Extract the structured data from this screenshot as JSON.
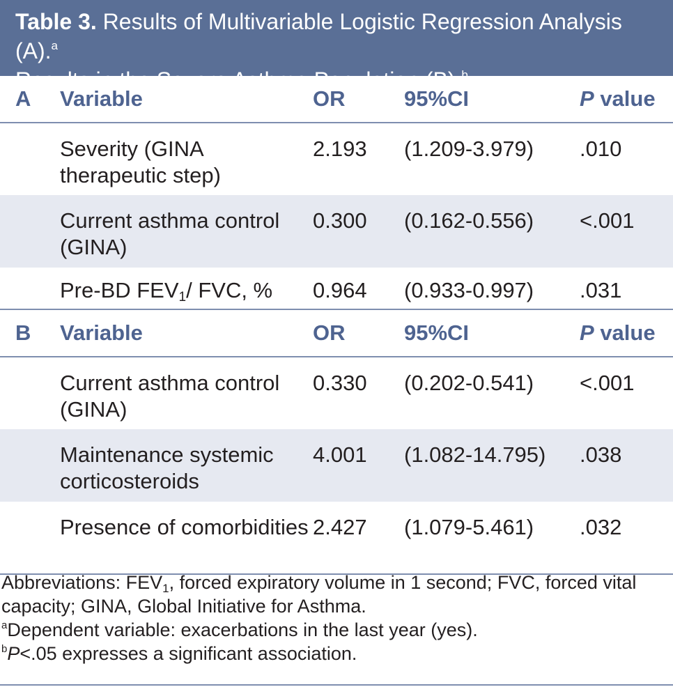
{
  "title": {
    "label": "Table 3.",
    "text_a": "Results of Multivariable Logistic Regression Analysis (A).",
    "sup_a": "a",
    "text_b": "Results in the Severe Asthma Population (B).",
    "sup_b": "b"
  },
  "columns": {
    "variable": "Variable",
    "or": "OR",
    "ci": "95%CI",
    "p_italic": "P",
    "p_rest": "value"
  },
  "section_a": {
    "label": "A",
    "rows": [
      {
        "variable": "Severity (GINA therapeutic step)",
        "or": "2.193",
        "ci": "(1.209-3.979)",
        "p": ".010"
      },
      {
        "variable": "Current asthma control (GINA)",
        "or": "0.300",
        "ci": "(0.162-0.556)",
        "p": "<.001"
      },
      {
        "variable_pre": "Pre-BD FEV",
        "variable_sub": "1",
        "variable_post": "/ FVC, %",
        "or": "0.964",
        "ci": "(0.933-0.997)",
        "p": ".031"
      }
    ]
  },
  "section_b": {
    "label": "B",
    "rows": [
      {
        "variable": "Current asthma control (GINA)",
        "or": "0.330",
        "ci": "(0.202-0.541)",
        "p": "<.001"
      },
      {
        "variable": "Maintenance systemic corticosteroids",
        "or": "4.001",
        "ci": "(1.082-14.795)",
        "p": ".038"
      },
      {
        "variable": "Presence of comorbidities",
        "or": "2.427",
        "ci": "(1.079-5.461)",
        "p": ".032"
      }
    ]
  },
  "footnotes": {
    "abbr_pre": "Abbreviations: FEV",
    "abbr_sub": "1",
    "abbr_post": ", forced expiratory volume in 1 second; FVC, forced vital capacity; GINA, Global Initiative for Asthma.",
    "a_mark": "a",
    "a_text": "Dependent variable: exacerbations in the last year (yes).",
    "b_mark": "b",
    "b_p": "P",
    "b_text": "<.05 expresses a significant association."
  }
}
